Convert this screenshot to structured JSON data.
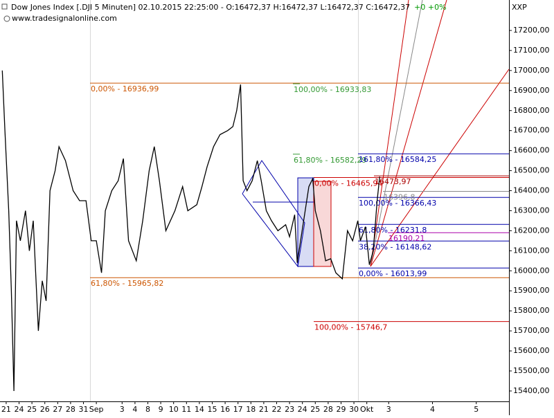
{
  "chart_data": {
    "type": "line",
    "title": "Dow Jones Index [.DJI  5 Minuten] 02.10.2015 22:25:00 - O:16472,37 H:16472,37 L:16472,37 C:16472,37",
    "change": "+0 +0%",
    "subtitle": "www.tradesignalonline.com",
    "y_axis_label": "XXP",
    "series": [
      {
        "name": "Dow Jones Index",
        "color": "#000000",
        "x": [
          -0.3,
          -0.1,
          0.2,
          0.4,
          0.6,
          0.8,
          1.1,
          1.5,
          1.8,
          2.1,
          2.5,
          2.8,
          3.1,
          3.4,
          3.8,
          4.1,
          4.6,
          5.2,
          5.7,
          6.2,
          6.6,
          7.0,
          7.4,
          7.7,
          8.2,
          8.7,
          9.1,
          9.5,
          10.1,
          10.6,
          11.1,
          11.5,
          11.9,
          12.4,
          13.1,
          13.7,
          14.1,
          14.8,
          15.2,
          15.6,
          16.1,
          16.6,
          17.2,
          17.6,
          17.9,
          18.2,
          18.4,
          18.7,
          19.1,
          19.5,
          19.8,
          20.2,
          20.6,
          21.1,
          21.7,
          22.0,
          22.4,
          22.6,
          23.1,
          23.5,
          23.8,
          24.0,
          24.4,
          24.8,
          25.2,
          25.6,
          26.1,
          26.5,
          26.9,
          27.3,
          27.5,
          27.9,
          28.2,
          28.5,
          28.8,
          29.0
        ],
        "values": [
          17000,
          16700,
          16300,
          15900,
          15400,
          16250,
          16150,
          16300,
          16100,
          16250,
          15700,
          15950,
          15850,
          16400,
          16500,
          16620,
          16550,
          16400,
          16350,
          16350,
          16150,
          16150,
          15990,
          16300,
          16400,
          16450,
          16560,
          16150,
          16050,
          16250,
          16500,
          16620,
          16450,
          16200,
          16300,
          16420,
          16300,
          16330,
          16420,
          16520,
          16620,
          16680,
          16700,
          16720,
          16800,
          16930,
          16450,
          16400,
          16450,
          16550,
          16450,
          16300,
          16250,
          16200,
          16230,
          16170,
          16280,
          16040,
          16250,
          16420,
          16460,
          16300,
          16200,
          16050,
          16060,
          15990,
          15960,
          16200,
          16150,
          16250,
          16150,
          16220,
          16030,
          16100,
          16350,
          16470
        ]
      }
    ],
    "xlim": [
      -0.48,
      39.04
    ],
    "xticks": [
      {
        "value": 0,
        "label": "21"
      },
      {
        "value": 1,
        "label": "24"
      },
      {
        "value": 2,
        "label": "25"
      },
      {
        "value": 3,
        "label": "26"
      },
      {
        "value": 4,
        "label": "27"
      },
      {
        "value": 5,
        "label": "28"
      },
      {
        "value": 6,
        "label": "31"
      },
      {
        "value": 7,
        "label": "Sep"
      },
      {
        "value": 9,
        "label": "3"
      },
      {
        "value": 10,
        "label": "4"
      },
      {
        "value": 11,
        "label": "8"
      },
      {
        "value": 12,
        "label": "9"
      },
      {
        "value": 13,
        "label": "10"
      },
      {
        "value": 14,
        "label": "11"
      },
      {
        "value": 15,
        "label": "14"
      },
      {
        "value": 16,
        "label": "15"
      },
      {
        "value": 17,
        "label": "16"
      },
      {
        "value": 18,
        "label": "17"
      },
      {
        "value": 19,
        "label": "18"
      },
      {
        "value": 20,
        "label": "21"
      },
      {
        "value": 21,
        "label": "22"
      },
      {
        "value": 22,
        "label": "23"
      },
      {
        "value": 23,
        "label": "24"
      },
      {
        "value": 24,
        "label": "25"
      },
      {
        "value": 25,
        "label": "28"
      },
      {
        "value": 26,
        "label": "29"
      },
      {
        "value": 27,
        "label": "30"
      },
      {
        "value": 28,
        "label": "Okt"
      },
      {
        "value": 29.7,
        "label": "3"
      },
      {
        "value": 33.1,
        "label": "4"
      },
      {
        "value": 36.5,
        "label": "5"
      }
    ],
    "ylim": [
      15348,
      17352
    ],
    "yticks": [
      {
        "value": 15400,
        "label": "15400,00"
      },
      {
        "value": 15500,
        "label": "15500,00"
      },
      {
        "value": 15600,
        "label": "15600,00"
      },
      {
        "value": 15700,
        "label": "15700,00"
      },
      {
        "value": 15800,
        "label": "15800,00"
      },
      {
        "value": 15900,
        "label": "15900,00"
      },
      {
        "value": 16000,
        "label": "16000,00"
      },
      {
        "value": 16100,
        "label": "16100,00"
      },
      {
        "value": 16200,
        "label": "16200,00"
      },
      {
        "value": 16300,
        "label": "16300,00"
      },
      {
        "value": 16400,
        "label": "16400,00"
      },
      {
        "value": 16500,
        "label": "16500,00"
      },
      {
        "value": 16600,
        "label": "16600,00"
      },
      {
        "value": 16700,
        "label": "16700,00"
      },
      {
        "value": 16800,
        "label": "16800,00"
      },
      {
        "value": 16900,
        "label": "16900,00"
      },
      {
        "value": 17000,
        "label": "17000,00"
      },
      {
        "value": 17100,
        "label": "17100,00"
      },
      {
        "value": 17200,
        "label": "17200,00"
      }
    ],
    "level_groups": [
      {
        "color": "#cc5500",
        "levels": [
          {
            "value": 16936.99,
            "label": "0,00% - 16936,99"
          },
          {
            "value": 15965.82,
            "label": "61,80% - 15965,82"
          }
        ]
      },
      {
        "color": "#339933",
        "levels": [
          {
            "value": 16933.83,
            "label": "100,00% - 16933,83"
          },
          {
            "value": 16582.29,
            "label": "61,80% - 16582,29"
          }
        ]
      },
      {
        "color": "#cc0000",
        "levels": [
          {
            "value": 16465.94,
            "label": "0,00% - 16465,94"
          },
          {
            "value": 15746.7,
            "label": "100,00% - 15746,7"
          }
        ]
      },
      {
        "color": "#0000aa",
        "levels": [
          {
            "value": 16584.25,
            "label": "161,80% - 16584,25"
          },
          {
            "value": 16366.43,
            "label": "100,00% - 16366,43"
          },
          {
            "value": 16231.8,
            "label": "61,80% - 16231,8"
          },
          {
            "value": 16148.62,
            "label": "38,20% - 16148,62"
          },
          {
            "value": 16013.99,
            "label": "0,00% - 16013,99"
          }
        ]
      },
      {
        "color": "#aa0000",
        "levels": [
          {
            "value": 16473.97,
            "label": "16473,97"
          }
        ]
      },
      {
        "color": "#888888",
        "levels": [
          {
            "value": 16396.8,
            "label": "16396,8"
          }
        ]
      },
      {
        "color": "#aa00aa",
        "levels": [
          {
            "value": 16190.21,
            "label": "16190,21"
          }
        ]
      }
    ]
  }
}
